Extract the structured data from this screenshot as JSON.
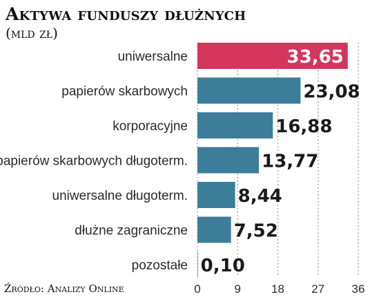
{
  "header": {
    "title": "Aktywa funduszy dłużnych",
    "subtitle": "(mld zł)"
  },
  "footer": {
    "source": "Źródło: Analizy Online"
  },
  "colors": {
    "highlight": "#d4355c",
    "bar": "#3c7d9a",
    "grid": "#9a9a9a",
    "value_on_highlight": "#ffffff",
    "value": "#1a1a1a"
  },
  "chart_data": {
    "type": "bar",
    "orientation": "horizontal",
    "categories": [
      "uniwersalne",
      "papierów skarbowych",
      "korporacyjne",
      "papierów skarbowych długoterm.",
      "uniwersalne długoterm.",
      "dłużne zagraniczne",
      "pozostałe"
    ],
    "values": [
      33.65,
      23.08,
      16.88,
      13.77,
      8.44,
      7.52,
      0.1
    ],
    "value_labels": [
      "33,65",
      "23,08",
      "16,88",
      "13,77",
      "8,44",
      "7,52",
      "0,10"
    ],
    "highlight_index": 0,
    "xlim": [
      0,
      36
    ],
    "xticks": [
      0,
      9,
      18,
      27,
      36
    ],
    "grid": "vertical dotted"
  }
}
